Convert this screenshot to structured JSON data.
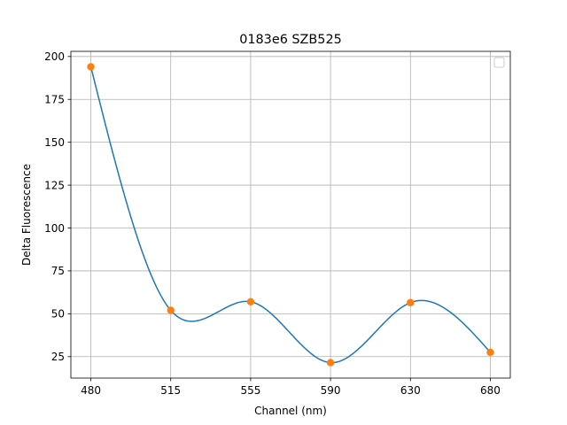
{
  "chart_data": {
    "type": "line",
    "title": "0183e6 SZB525",
    "xlabel": "Channel (nm)",
    "ylabel": "Delta Fluorescence",
    "categories": [
      "480",
      "515",
      "555",
      "590",
      "630",
      "680"
    ],
    "values": [
      194,
      52,
      57,
      21.5,
      56.5,
      27.5
    ],
    "smoothed_line_color": "#1f77b4",
    "marker_color": "#ff7f0e",
    "ylim": [
      12.5,
      203
    ],
    "yticks": [
      25,
      50,
      75,
      100,
      125,
      150,
      175,
      200
    ],
    "grid": true,
    "legend": "top-right, empty"
  }
}
